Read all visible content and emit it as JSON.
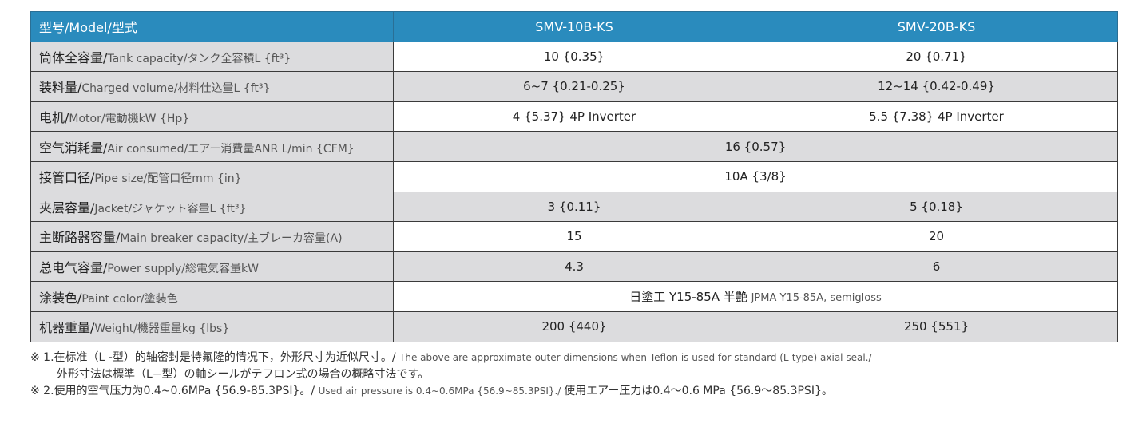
{
  "header": {
    "label": "型号/Model/型式",
    "models": [
      "SMV-10B-KS",
      "SMV-20B-KS"
    ]
  },
  "rows": [
    {
      "zh": "筒体全容量/",
      "rest": "Tank capacity/タンク全容積L {ft³}",
      "values": [
        "10 {0.35}",
        "20 {0.71}"
      ]
    },
    {
      "zh": "装料量/",
      "rest": "Charged volume/材料仕込量L {ft³}",
      "values": [
        "6~7 {0.21-0.25}",
        "12~14 {0.42-0.49}"
      ]
    },
    {
      "zh": "电机/",
      "rest": "Motor/電動機kW {Hp}",
      "values": [
        "4 {5.37} 4P Inverter",
        "5.5 {7.38} 4P Inverter"
      ]
    },
    {
      "zh": "空气消耗量/",
      "rest": "Air consumed/エアー消費量ANR L/min {CFM}",
      "values": [
        "16 {0.57}"
      ]
    },
    {
      "zh": "接管口径/",
      "rest": "Pipe size/配管口径mm {in}",
      "values": [
        "10A {3/8}"
      ]
    },
    {
      "zh": "夹层容量/",
      "rest": "Jacket/ジャケット容量L {ft³}",
      "values": [
        "3 {0.11}",
        "5 {0.18}"
      ]
    },
    {
      "zh": "主断路器容量/",
      "rest": "Main breaker capacity/主ブレーカ容量(A)",
      "values": [
        "15",
        "20"
      ]
    },
    {
      "zh": "总电气容量/",
      "rest": "Power supply/総電気容量kW",
      "values": [
        "4.3",
        "6"
      ]
    },
    {
      "zh": "涂装色/",
      "rest": "Paint color/塗装色",
      "values": [
        "日塗工 Y15-85A 半艶"
      ],
      "extra": "JPMA Y15-85A, semigloss"
    },
    {
      "zh": "机器重量/",
      "rest": "Weight/機器重量kg {lbs}",
      "values": [
        "200 {440}",
        "250 {551}"
      ]
    }
  ],
  "notes": {
    "n1_zh": "※ 1.在标准（L -型）的轴密封是特氟隆的情况下，外形尺寸为近似尺寸。/ ",
    "n1_en": "The above are approximate outer dimensions when Teflon is used for standard (L-type) axial seal./",
    "n1_ja": "外形寸法は標準（L−型）の軸シールがテフロン式の場合の概略寸法です。",
    "n2_zh": "※ 2.使用的空气压力为0.4~0.6MPa {56.9-85.3PSI}。/ ",
    "n2_en": "Used air pressure is 0.4~0.6MPa {56.9~85.3PSI}./ ",
    "n2_ja": "使用エアー圧力は0.4〜0.6 MPa {56.9〜85.3PSI}。"
  }
}
